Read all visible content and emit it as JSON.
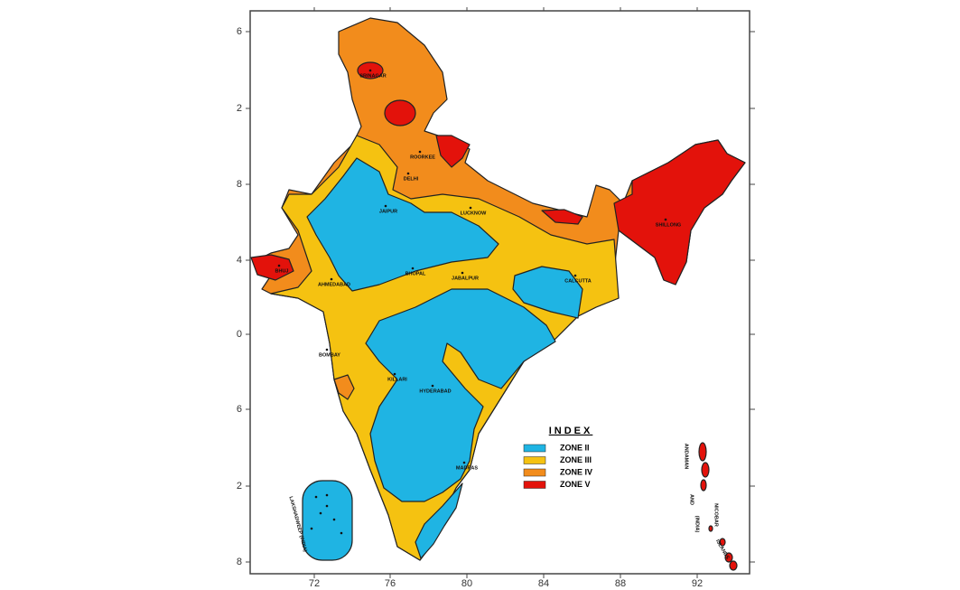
{
  "map": {
    "left_labels": [
      "6",
      "2",
      "8",
      "4",
      "0",
      "6",
      "2",
      "8"
    ],
    "bottom_labels": [
      "72",
      "76",
      "80",
      "84",
      "88",
      "92"
    ],
    "cities": [
      "SRINAGAR",
      "DELHI",
      "ROORKEE",
      "LUCKNOW",
      "JAIPUR",
      "BHUJ",
      "AHMEDABAD",
      "BHOPAL",
      "JABALPUR",
      "CALCUTTA",
      "BOMBAY",
      "KILLARI",
      "HYDERABAD",
      "MADRAS",
      "SHILLONG"
    ],
    "islands": [
      "LAKSHADWEEP (INDIA)",
      "ANDAMAN",
      "AND",
      "NICOBAR",
      "(INDIA)",
      "ISLANDS"
    ],
    "legend": {
      "title": "INDEX",
      "items": [
        {
          "label": "ZONE II",
          "color": "#1fb4e3"
        },
        {
          "label": "ZONE III",
          "color": "#f5c211"
        },
        {
          "label": "ZONE IV",
          "color": "#f28c1c"
        },
        {
          "label": "ZONE V",
          "color": "#e3120b"
        }
      ]
    }
  }
}
